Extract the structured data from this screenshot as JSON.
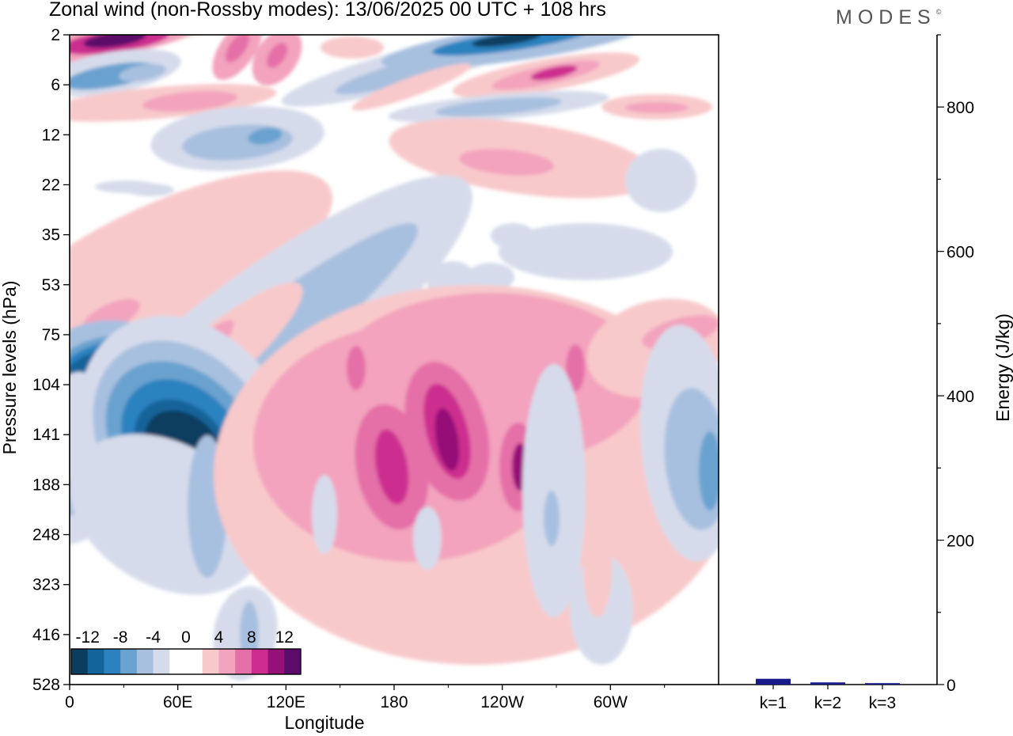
{
  "title": "Zonal wind (non-Rossby modes):  13/06/2025  00 UTC  + 108 hrs",
  "logo": "MODES",
  "logo_mark": "©",
  "colors": {
    "m12": "#0b3d5e",
    "m10": "#12649a",
    "m8": "#2c82bf",
    "m6": "#6aa2cf",
    "m4": "#a8c0df",
    "m2": "#d6dbeb",
    "zero": "#ffffff",
    "p2": "#f8c9cb",
    "p4": "#f3a3bd",
    "p6": "#e56fa7",
    "p8": "#cc2d8f",
    "p10": "#951077",
    "p12": "#5c0c6a",
    "bar": "#1a1a8c"
  },
  "chart_data": [
    {
      "type": "heatmap",
      "xlabel": "Longitude",
      "ylabel": "Pressure levels (hPa)",
      "x_ticks": [
        "0",
        "60E",
        "120E",
        "180",
        "120W",
        "60W"
      ],
      "x_tick_values": [
        0,
        60,
        120,
        180,
        240,
        300
      ],
      "xlim": [
        0,
        360
      ],
      "y_ticks": [
        "2",
        "6",
        "12",
        "22",
        "35",
        "53",
        "75",
        "104",
        "141",
        "188",
        "248",
        "323",
        "416",
        "528"
      ],
      "colorbar_labels": [
        "-12",
        "-8",
        "-4",
        "0",
        "4",
        "8",
        "12"
      ],
      "colorbar_levels": [
        -12,
        -10,
        -8,
        -6,
        -4,
        -2,
        0,
        2,
        4,
        6,
        8,
        10,
        12
      ],
      "features": [
        {
          "lon": 57,
          "level": "141",
          "value": -14
        },
        {
          "lon": 15,
          "level": "104",
          "value": -10
        },
        {
          "lon": 30,
          "level": "2",
          "value": 12
        },
        {
          "lon": 210,
          "level": "141",
          "value": 11
        },
        {
          "lon": 250,
          "level": "141",
          "value": 9
        },
        {
          "lon": 240,
          "level": "2",
          "value": -12
        },
        {
          "lon": 260,
          "level": "6",
          "value": 8
        },
        {
          "lon": 355,
          "level": "188",
          "value": -6
        }
      ]
    },
    {
      "type": "bar",
      "ylabel": "Energy (J/kg)",
      "categories": [
        "k=1",
        "k=2",
        "k=3"
      ],
      "values": [
        8,
        3,
        2
      ],
      "ylim": [
        0,
        900
      ],
      "y_ticks": [
        "0",
        "200",
        "400",
        "600",
        "800"
      ]
    }
  ]
}
